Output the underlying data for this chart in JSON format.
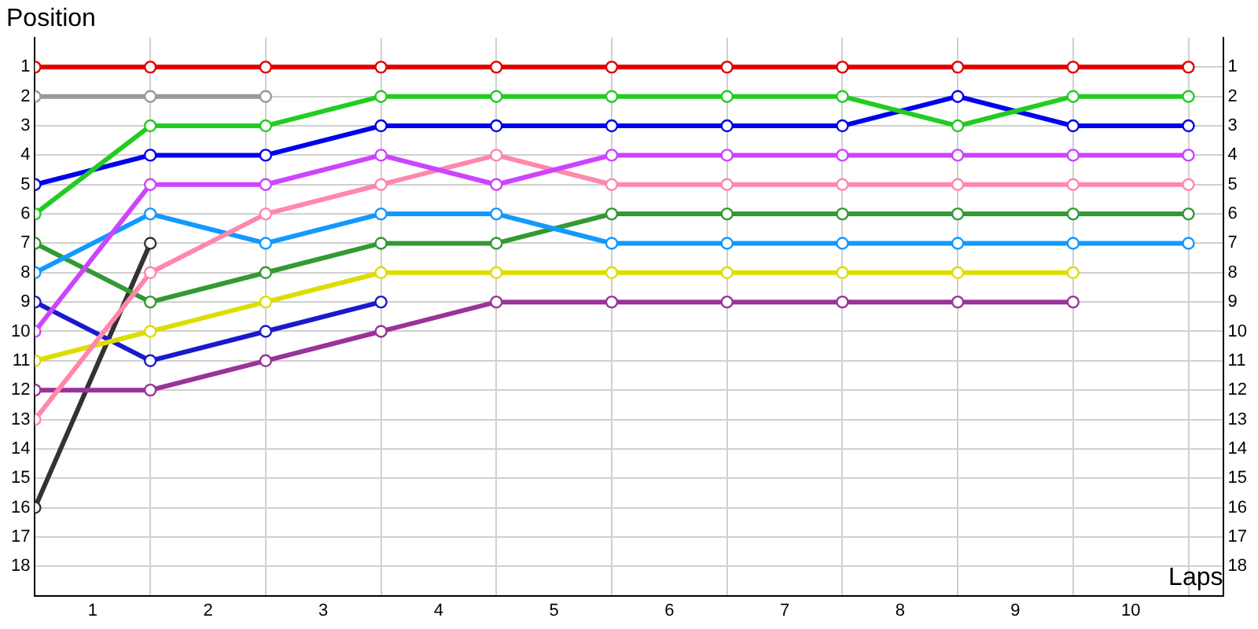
{
  "chart_data": {
    "type": "line",
    "xlabel": "Laps",
    "ylabel": "Position",
    "x": [
      0,
      1,
      2,
      3,
      4,
      5,
      6,
      7,
      8,
      9,
      10
    ],
    "xlim": [
      0,
      10.3
    ],
    "xticks": [
      {
        "value": 0,
        "label": null
      },
      {
        "value": 0.5,
        "label": "1"
      },
      {
        "value": 1,
        "label": null
      },
      {
        "value": 1.5,
        "label": "2"
      },
      {
        "value": 2,
        "label": null
      },
      {
        "value": 2.5,
        "label": "3"
      },
      {
        "value": 3,
        "label": null
      },
      {
        "value": 3.5,
        "label": "4"
      },
      {
        "value": 4,
        "label": null
      },
      {
        "value": 4.5,
        "label": "5"
      },
      {
        "value": 5,
        "label": null
      },
      {
        "value": 5.5,
        "label": "6"
      },
      {
        "value": 6,
        "label": null
      },
      {
        "value": 6.5,
        "label": "7"
      },
      {
        "value": 7,
        "label": null
      },
      {
        "value": 7.5,
        "label": "8"
      },
      {
        "value": 8,
        "label": null
      },
      {
        "value": 8.5,
        "label": "9"
      },
      {
        "value": 9,
        "label": null
      },
      {
        "value": 9.5,
        "label": "10"
      },
      {
        "value": 10,
        "label": null
      }
    ],
    "ylim": [
      19,
      0
    ],
    "yticks": [
      1,
      2,
      3,
      4,
      5,
      6,
      7,
      8,
      9,
      10,
      11,
      12,
      13,
      14,
      15,
      16,
      17,
      18
    ],
    "y2lim": [
      19,
      0
    ],
    "y2ticks": [
      1,
      2,
      3,
      4,
      5,
      6,
      7,
      8,
      9,
      10,
      11,
      12,
      13,
      14,
      15,
      16,
      17,
      18
    ],
    "grid": true,
    "legend": false,
    "marker": "circle",
    "line_style": "solid",
    "series": [
      {
        "color": "#e00000",
        "values": [
          1,
          1,
          1,
          1,
          1,
          1,
          1,
          1,
          1,
          1,
          1
        ]
      },
      {
        "color": "#999999",
        "values": [
          2,
          2,
          2,
          null,
          null,
          null,
          null,
          null,
          null,
          null,
          null
        ]
      },
      {
        "color": "#22cc22",
        "values": [
          6,
          3,
          3,
          2,
          2,
          2,
          2,
          2,
          3,
          2,
          2
        ]
      },
      {
        "color": "#0000ee",
        "values": [
          5,
          4,
          4,
          3,
          3,
          3,
          3,
          3,
          2,
          3,
          3
        ]
      },
      {
        "color": "#cc44ff",
        "values": [
          10,
          5,
          5,
          4,
          5,
          4,
          4,
          4,
          4,
          4,
          4
        ]
      },
      {
        "color": "#ff88aa",
        "values": [
          13,
          8,
          6,
          5,
          4,
          5,
          5,
          5,
          5,
          5,
          5
        ]
      },
      {
        "color": "#1199ff",
        "values": [
          8,
          6,
          7,
          6,
          6,
          7,
          7,
          7,
          7,
          7,
          7
        ]
      },
      {
        "color": "#339933",
        "values": [
          7,
          9,
          8,
          7,
          7,
          6,
          6,
          6,
          6,
          6,
          6
        ]
      },
      {
        "color": "#dddd00",
        "values": [
          11,
          10,
          9,
          8,
          8,
          8,
          8,
          8,
          8,
          8,
          null
        ]
      },
      {
        "color": "#1a1acc",
        "values": [
          9,
          11,
          10,
          9,
          null,
          null,
          null,
          null,
          null,
          null,
          null
        ]
      },
      {
        "color": "#993399",
        "values": [
          12,
          12,
          11,
          10,
          9,
          9,
          9,
          9,
          9,
          9,
          null
        ]
      },
      {
        "color": "#333333",
        "values": [
          16,
          7,
          null,
          null,
          null,
          null,
          null,
          null,
          null,
          null,
          null
        ]
      }
    ]
  }
}
